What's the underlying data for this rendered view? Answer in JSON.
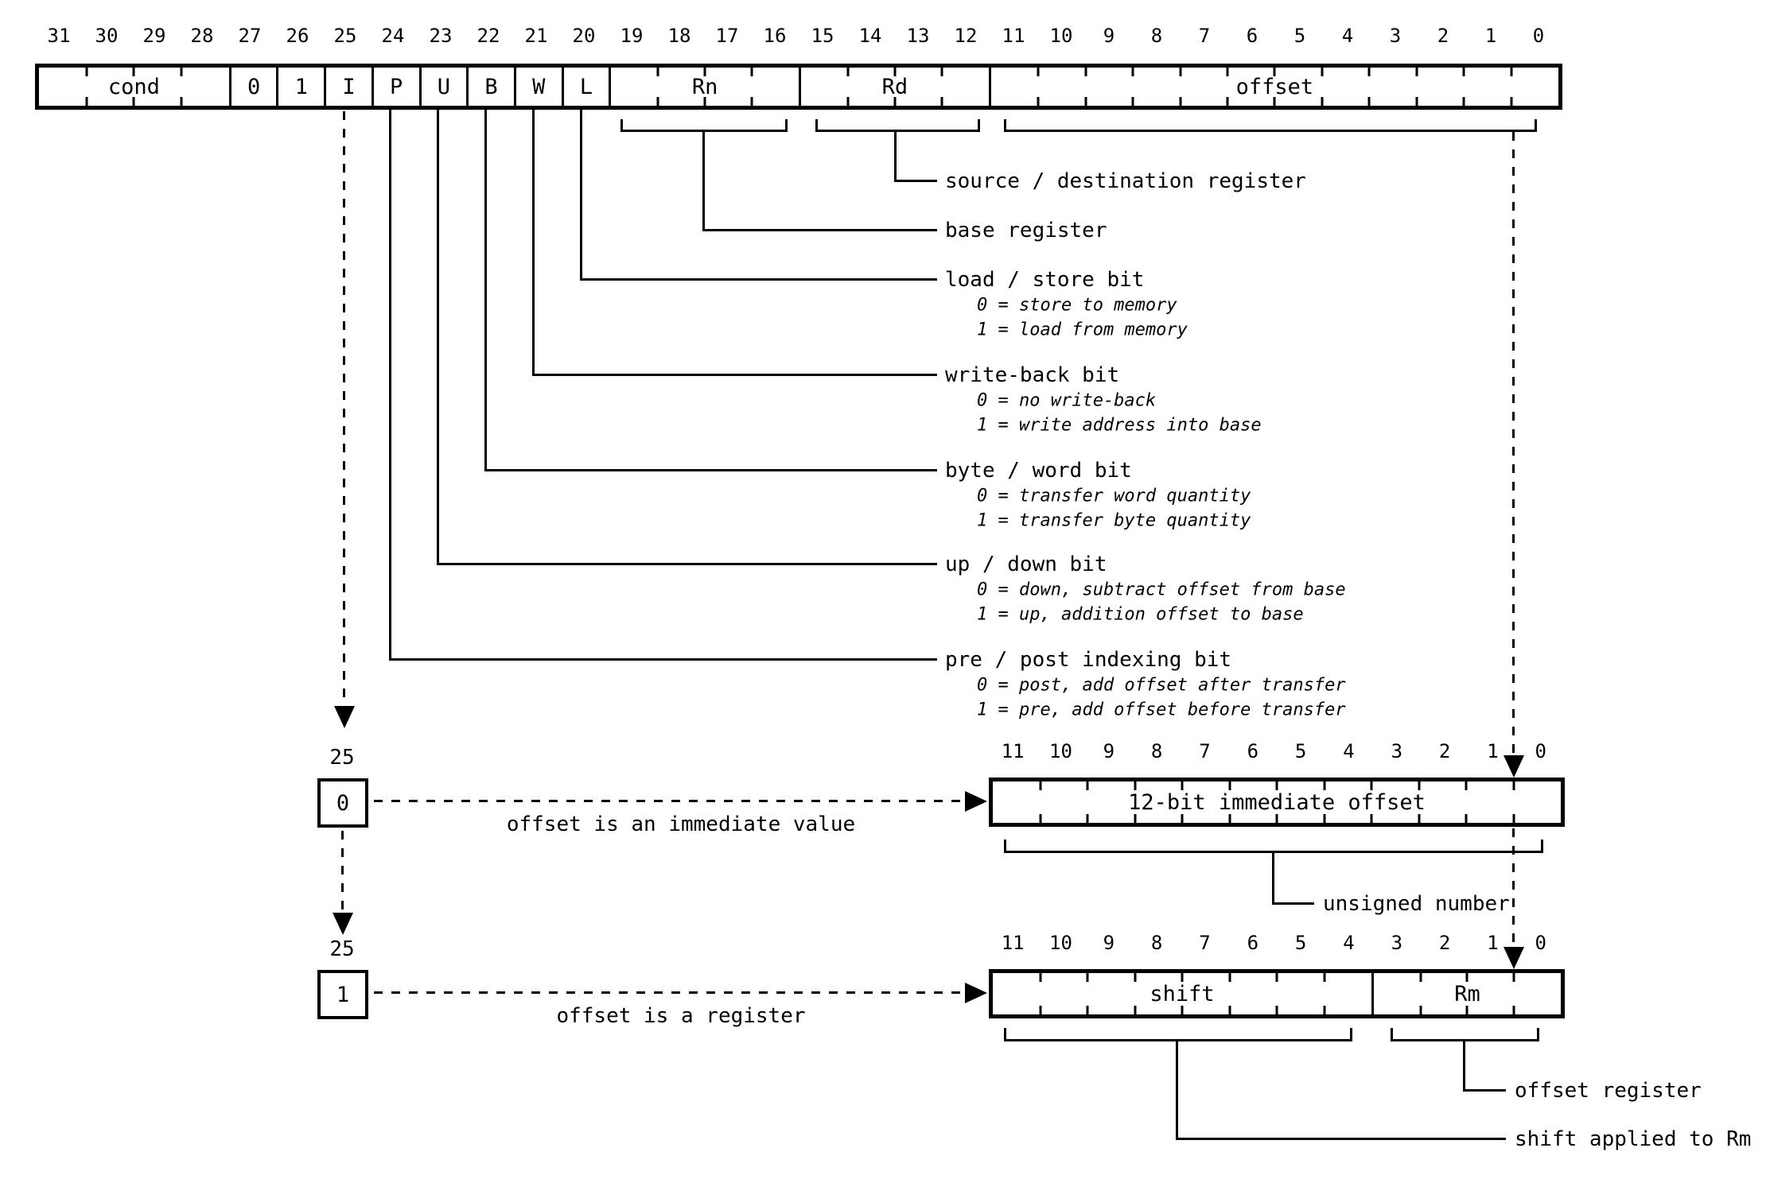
{
  "colors": {
    "ink": "#000000",
    "background": "#ffffff"
  },
  "main_register": {
    "bit_numbers": [
      "31",
      "30",
      "29",
      "28",
      "27",
      "26",
      "25",
      "24",
      "23",
      "22",
      "21",
      "20",
      "19",
      "18",
      "17",
      "16",
      "15",
      "14",
      "13",
      "12",
      "11",
      "10",
      "9",
      "8",
      "7",
      "6",
      "5",
      "4",
      "3",
      "2",
      "1",
      "0"
    ],
    "fields": {
      "cond": "cond",
      "b27": "0",
      "b26": "1",
      "i": "I",
      "p": "P",
      "u": "U",
      "b": "B",
      "w": "W",
      "l": "L",
      "rn": "Rn",
      "rd": "Rd",
      "offset": "offset"
    }
  },
  "annotations": {
    "src_dst": {
      "label": "source / destination register"
    },
    "base": {
      "label": "base register"
    },
    "load_store": {
      "label": "load / store bit",
      "note0": "0 = store to memory",
      "note1": "1 = load from memory"
    },
    "write_back": {
      "label": "write-back bit",
      "note0": "0 = no write-back",
      "note1": "1 = write address into base"
    },
    "byte_word": {
      "label": "byte / word bit",
      "note0": "0 = transfer word quantity",
      "note1": "1 = transfer byte quantity"
    },
    "up_down": {
      "label": "up / down bit",
      "note0": "0 = down, subtract offset from base",
      "note1": "1 = up, addition offset to base"
    },
    "pre_post": {
      "label": "pre / post indexing bit",
      "note0": "0 = post, add offset after transfer",
      "note1": "1 = pre, add offset before transfer"
    }
  },
  "immediate_form": {
    "source_bit": "25",
    "value": "0",
    "arrow_label": "offset is an immediate value",
    "bit_numbers": [
      "11",
      "10",
      "9",
      "8",
      "7",
      "6",
      "5",
      "4",
      "3",
      "2",
      "1",
      "0"
    ],
    "field": "12-bit immediate offset",
    "brace_label": "unsigned number"
  },
  "register_form": {
    "source_bit": "25",
    "value": "1",
    "arrow_label": "offset is a register",
    "bit_numbers": [
      "11",
      "10",
      "9",
      "8",
      "7",
      "6",
      "5",
      "4",
      "3",
      "2",
      "1",
      "0"
    ],
    "shift_field": "shift",
    "rm_field": "Rm",
    "rm_brace_label": "offset register",
    "shift_brace_label": "shift applied to Rm"
  }
}
